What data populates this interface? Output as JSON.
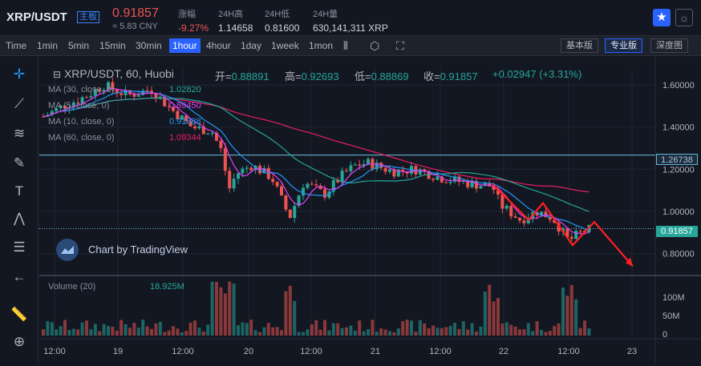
{
  "header": {
    "pair": "XRP/USDT",
    "market_tag": "主板",
    "price": "0.91857",
    "price_cny": "≈ 5.83 CNY",
    "stats": [
      {
        "label": "涨幅",
        "value": "-9.27%"
      },
      {
        "label": "24H高",
        "value": "1.14658"
      },
      {
        "label": "24H低",
        "value": "0.81600"
      },
      {
        "label": "24H量",
        "value": "630,141,311 XRP"
      }
    ],
    "star_icon": "star-icon",
    "theme_icon": "sun-icon"
  },
  "toolbar": {
    "timeframes": [
      "Time",
      "1min",
      "5min",
      "15min",
      "30min",
      "1hour",
      "4hour",
      "1day",
      "1week",
      "1mon"
    ],
    "active_timeframe": "1hour",
    "icons": [
      "candle-type-icon",
      "settings-icon",
      "fullscreen-icon"
    ],
    "versions": [
      "基本版",
      "专业版",
      "深度图"
    ],
    "active_version": "专业版"
  },
  "left_tools": [
    "crosshair-icon",
    "trend-line-icon",
    "fib-icon",
    "brush-icon",
    "text-icon",
    "pattern-icon",
    "measure-icon",
    "back-arrow-icon",
    "ruler-icon",
    "zoom-in-icon"
  ],
  "legend": {
    "title": "XRP/USDT, 60, Huobi",
    "open_label": "开=",
    "open": "0.88891",
    "high_label": "高=",
    "high": "0.92693",
    "low_label": "低=",
    "low": "0.88869",
    "close_label": "收=",
    "close": "0.91857",
    "change": "+0.02947 (+3.31%)",
    "ma": [
      {
        "label": "MA (30, close, 0)",
        "value": "1.02820",
        "color": "#26a69a"
      },
      {
        "label": "MA (5, close, 0)",
        "value": "0.89450",
        "color": "#e040fb"
      },
      {
        "label": "MA (10, close, 0)",
        "value": "0.91888",
        "color": "#2196f3"
      },
      {
        "label": "MA (60, close, 0)",
        "value": "1.09344",
        "color": "#e91e63"
      }
    ]
  },
  "badges": {
    "level_line": "1.26738",
    "last_price": "0.91857"
  },
  "watermark": "Chart by TradingView",
  "volume": {
    "label": "Volume (20)",
    "value": "18.925M"
  },
  "chart_data": {
    "type": "candlestick",
    "y_ticks": [
      "1.60000",
      "1.40000",
      "1.20000",
      "1.00000",
      "0.80000"
    ],
    "y_range": [
      0.7,
      1.68
    ],
    "vol_ticks": [
      "100M",
      "50M",
      "0"
    ],
    "x_ticks": [
      "12:00",
      "19",
      "12:00",
      "20",
      "12:00",
      "21",
      "12:00",
      "22",
      "12:00",
      "23"
    ],
    "colors": {
      "up": "#26a69a",
      "down": "#ef5350",
      "ma30": "#26a69a",
      "ma60": "#e91e63",
      "ma10": "#2196f3",
      "ma5": "#e040fb",
      "drawing": "#ff1f1f"
    }
  }
}
